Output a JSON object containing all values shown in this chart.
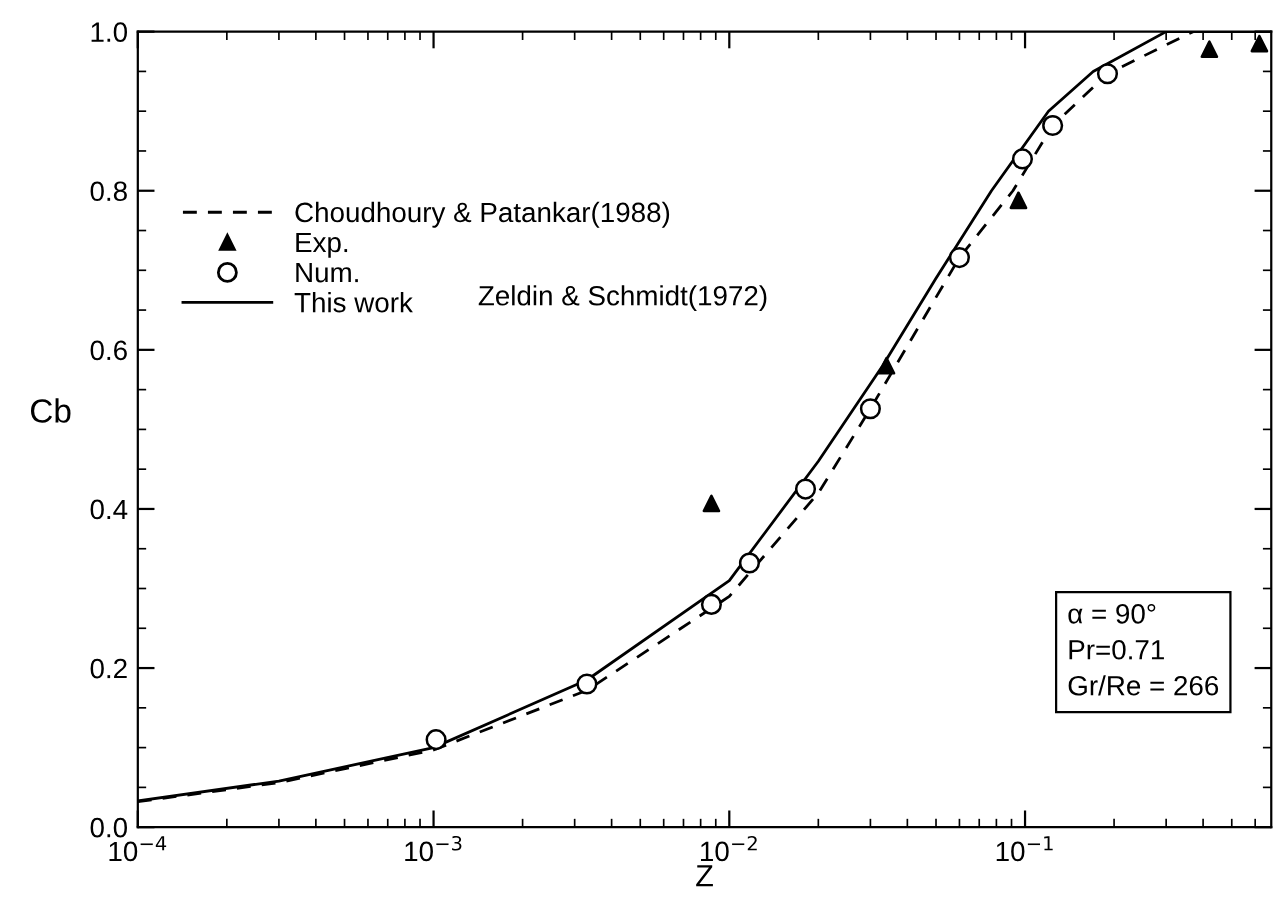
{
  "chart_data": {
    "type": "line",
    "xlabel": "Z",
    "ylabel": "Cb",
    "log": "x",
    "xlim": [
      0.0001,
      0.68
    ],
    "xticks": [
      {
        "value": 0.0001,
        "label": "10$^{−4}$"
      },
      {
        "value": 0.001,
        "label": "10$^{−3}$"
      },
      {
        "value": 0.01,
        "label": "10$^{−2}$"
      },
      {
        "value": 0.1,
        "label": "10$^{−1}$"
      }
    ],
    "ylim": [
      0,
      1
    ],
    "yticks": [
      {
        "value": 0,
        "label": "0.0"
      },
      {
        "value": 0.2,
        "label": "0.2"
      },
      {
        "value": 0.4,
        "label": "0.4"
      },
      {
        "value": 0.6,
        "label": "0.6"
      },
      {
        "value": 0.8,
        "label": "0.8"
      },
      {
        "value": 1,
        "label": "1.0"
      }
    ],
    "grid": false,
    "legend": "top left",
    "series": [
      {
        "name": "Choudhoury & Patankar(1988)",
        "color": "#000000",
        "line_style": "dashed",
        "marker": "none",
        "x": [
          0.0001,
          0.0003,
          0.001,
          0.0033,
          0.01,
          0.02,
          0.03,
          0.06,
          0.091,
          0.124,
          0.19,
          0.37,
          0.68
        ],
        "values": [
          0.032,
          0.056,
          0.097,
          0.172,
          0.29,
          0.42,
          0.526,
          0.716,
          0.8,
          0.882,
          0.947,
          1.0,
          1.0
        ]
      },
      {
        "name": "Exp.",
        "type": "scatter",
        "color": "#000000",
        "marker": "triangle",
        "x": [
          0.0087,
          0.034,
          0.095,
          0.42,
          0.62
        ],
        "values": [
          0.407,
          0.58,
          0.788,
          0.978,
          0.985
        ]
      },
      {
        "name": "Num.",
        "type": "scatter",
        "color": "#000000",
        "marker": "circle",
        "x": [
          0.00102,
          0.0033,
          0.0087,
          0.0117,
          0.0181,
          0.03,
          0.06,
          0.098,
          0.124,
          0.19
        ],
        "values": [
          0.11,
          0.18,
          0.28,
          0.332,
          0.425,
          0.526,
          0.716,
          0.84,
          0.882,
          0.947
        ]
      },
      {
        "name": "This work",
        "color": "#000000",
        "line_style": "solid",
        "marker": "none",
        "x": [
          0.0001,
          0.0003,
          0.001,
          0.0033,
          0.01,
          0.02,
          0.033,
          0.05,
          0.077,
          0.12,
          0.17,
          0.3,
          0.68
        ],
        "values": [
          0.033,
          0.058,
          0.1,
          0.185,
          0.31,
          0.46,
          0.58,
          0.69,
          0.8,
          0.9,
          0.95,
          1.0,
          1.0
        ]
      }
    ],
    "annotations": [
      "Zeldin & Schmidt(1972)",
      "α = 90°\nPr=0.71\nGr/Re = 266"
    ]
  }
}
